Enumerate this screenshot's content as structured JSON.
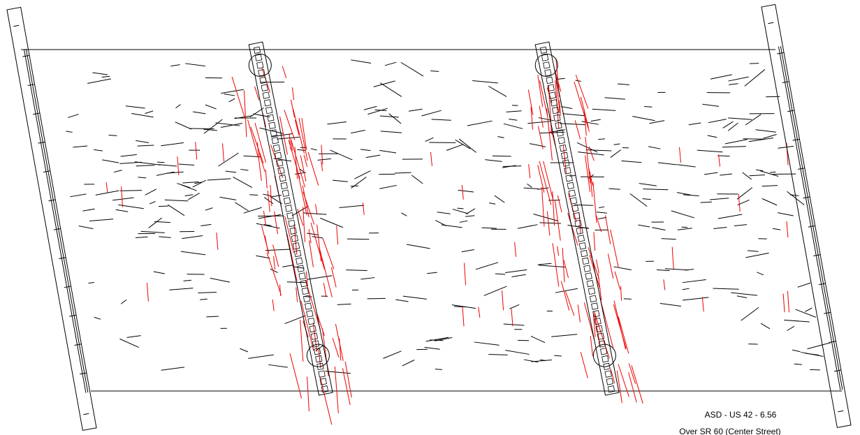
{
  "title": "ASD - US 42 - 6.56",
  "subtitle": "Over SR 60 (Center Street)"
}
